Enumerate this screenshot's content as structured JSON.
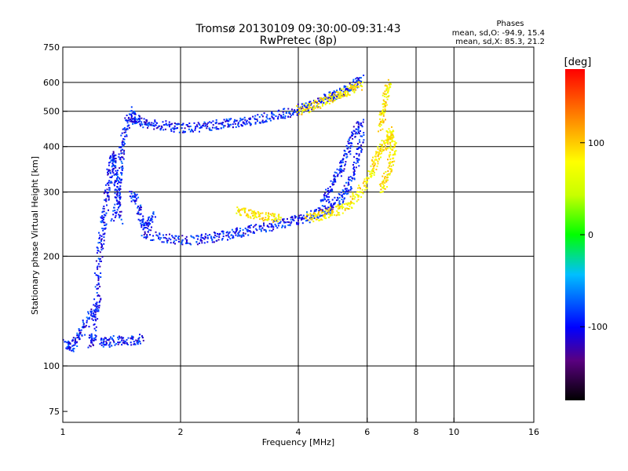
{
  "chart_data": {
    "type": "scatter",
    "title": "Tromsø 20130109 09:30:00-09:31:43",
    "subtitle": "RwPretec (8p)",
    "xlabel": "Frequency [MHz]",
    "ylabel": "Stationary phase Virtual Height [km]",
    "xscale": "log",
    "yscale": "log",
    "xlim": [
      1,
      16
    ],
    "ylim": [
      70,
      750
    ],
    "grid": true,
    "x_ticks": [
      1,
      2,
      4,
      6,
      8,
      10,
      16
    ],
    "x_tick_labels": [
      "1",
      "2",
      "4",
      "6",
      "8",
      "10",
      "16"
    ],
    "x_grid": [
      2,
      4,
      6,
      8,
      10
    ],
    "y_ticks": [
      75,
      100,
      200,
      300,
      400,
      500,
      600,
      750
    ],
    "y_tick_labels": [
      "75",
      "100",
      "200",
      "300",
      "400",
      "500",
      "600",
      "750"
    ],
    "y_grid": [
      100,
      200,
      300,
      400,
      500,
      600
    ],
    "phase_stats": {
      "title": "Phases",
      "line_o": "mean, sd,O: -94.9, 15.4",
      "line_x": "mean, sd,X:  85.3, 21.2"
    },
    "colorbar": {
      "label": "[deg]",
      "range": [
        -180,
        180
      ],
      "ticks": [
        100,
        0,
        -100
      ],
      "tick_labels": [
        "100",
        "0",
        "-100"
      ]
    },
    "series": [
      {
        "name": "O",
        "mean_phase": -94.9,
        "traces": [
          {
            "x": [
              1.02,
              1.05,
              1.09,
              1.14,
              1.19,
              1.24
            ],
            "y": [
              115,
              112,
              118,
              130,
              140,
              150
            ]
          },
          {
            "x": [
              1.18,
              1.2,
              1.22,
              1.24,
              1.26,
              1.28,
              1.3,
              1.32,
              1.34,
              1.36,
              1.38,
              1.4
            ],
            "y": [
              115,
              120,
              160,
              200,
              230,
              260,
              300,
              340,
              380,
              350,
              300,
              250
            ]
          },
          {
            "x": [
              1.25,
              1.3,
              1.4,
              1.5,
              1.6
            ],
            "y": [
              117,
              116,
              118,
              117,
              119
            ]
          },
          {
            "x": [
              1.35,
              1.38,
              1.4,
              1.42,
              1.45,
              1.5,
              1.55
            ],
            "y": [
              250,
              300,
              350,
              400,
              450,
              500,
              470
            ]
          },
          {
            "x": [
              1.5,
              1.55,
              1.6,
              1.65,
              1.7
            ],
            "y": [
              300,
              280,
              250,
              240,
              260
            ]
          },
          {
            "x": [
              1.5,
              1.6,
              1.7,
              1.85,
              2.0,
              2.2,
              2.4,
              2.6,
              2.8,
              3.0
            ],
            "y": [
              470,
              465,
              460,
              455,
              450,
              452,
              458,
              462,
              466,
              470
            ]
          },
          {
            "x": [
              1.6,
              1.8,
              2.0,
              2.2,
              2.4,
              2.6,
              2.8,
              3.0,
              3.3,
              3.6,
              3.9,
              4.2,
              4.5,
              4.8,
              5.1,
              5.3,
              5.5,
              5.7,
              5.8
            ],
            "y": [
              230,
              225,
              222,
              222,
              225,
              228,
              232,
              236,
              240,
              245,
              250,
              255,
              262,
              272,
              285,
              300,
              330,
              380,
              430
            ]
          },
          {
            "x": [
              3.0,
              3.3,
              3.6,
              3.9,
              4.2,
              4.5,
              4.8,
              5.0,
              5.3,
              5.6,
              5.8
            ],
            "y": [
              470,
              480,
              490,
              500,
              515,
              530,
              545,
              555,
              570,
              590,
              610
            ]
          },
          {
            "x": [
              4.6,
              4.8,
              5.0,
              5.2,
              5.4,
              5.6,
              5.8
            ],
            "y": [
              280,
              300,
              330,
              360,
              400,
              440,
              470
            ]
          }
        ]
      },
      {
        "name": "X",
        "mean_phase": 85.3,
        "traces": [
          {
            "x": [
              2.8,
              3.0,
              3.2,
              3.4,
              3.6
            ],
            "y": [
              265,
              262,
              258,
              255,
              252
            ]
          },
          {
            "x": [
              4.0,
              4.3,
              4.6,
              4.9,
              5.2,
              5.5,
              5.8
            ],
            "y": [
              500,
              515,
              530,
              545,
              560,
              575,
              590
            ]
          },
          {
            "x": [
              4.2,
              4.5,
              4.8,
              5.1,
              5.4,
              5.7,
              6.0
            ],
            "y": [
              255,
              258,
              262,
              268,
              278,
              295,
              320
            ]
          },
          {
            "x": [
              6.0,
              6.2,
              6.4,
              6.6,
              6.8,
              6.9,
              7.0,
              6.9,
              6.7,
              6.5
            ],
            "y": [
              320,
              350,
              380,
              400,
              420,
              440,
              400,
              360,
              330,
              300
            ]
          },
          {
            "x": [
              6.5,
              6.6,
              6.7,
              6.8
            ],
            "y": [
              450,
              500,
              550,
              600
            ]
          }
        ]
      }
    ]
  }
}
